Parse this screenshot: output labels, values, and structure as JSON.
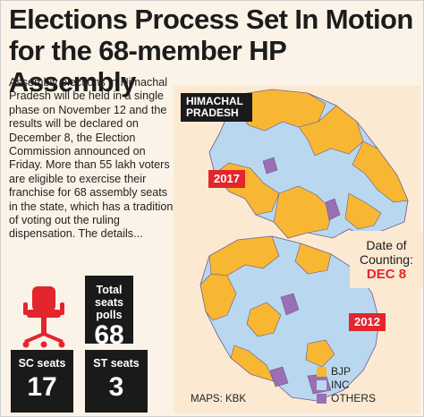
{
  "title_line1": "Elections Process Set In Motion",
  "title_line2": "for the 68-member HP Assembly",
  "body_text": "Assembly elections in Himachal Pradesh will be held in a single phase on November 12 and the results will be declared on December 8, the Election Commission announced on Friday. More than 55 lakh voters are eligible to exercise their franchise for 68 assembly seats in the state, which has a tradition of voting out the ruling dispensation. The details...",
  "map_label": "HIMACHAL PRADESH",
  "year_top": "2017",
  "year_bottom": "2012",
  "date_of_counting_label": "Date of Counting:",
  "date_of_counting_value": "DEC 8",
  "total_seats_label": "Total seats polls",
  "total_seats_value": "68",
  "sc_seats_label": "SC seats",
  "sc_seats_value": "17",
  "st_seats_label": "ST seats",
  "st_seats_value": "3",
  "icon": "office-chair-icon",
  "legend": [
    {
      "label": "BJP",
      "color": "#f7b733"
    },
    {
      "label": "INC",
      "color": "#b9d8ef"
    },
    {
      "label": "OTHERS",
      "color": "#9b6fb3"
    }
  ],
  "credit": "MAPS: KBK",
  "colors": {
    "accent_red": "#e3252e",
    "dark_box": "#1a1a1a",
    "bjp": "#f7b733",
    "inc": "#b9d8ef",
    "others": "#9b6fb3",
    "panel": "#fbe9d2"
  }
}
